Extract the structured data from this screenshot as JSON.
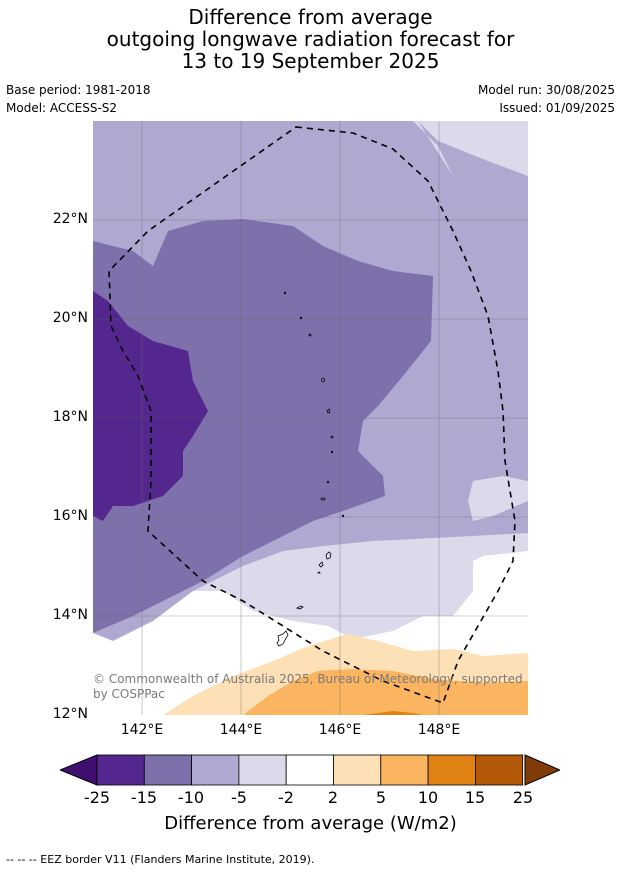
{
  "title": {
    "line1": "Difference from average",
    "line2": "outgoing longwave radiation forecast for",
    "line3": "13 to 19 September 2025"
  },
  "meta": {
    "base_period": "Base period: 1981-2018",
    "model": "Model: ACCESS-S2",
    "model_run": "Model run: 30/08/2025",
    "issued": "Issued: 01/09/2025"
  },
  "map": {
    "lat_labels": [
      "22°N",
      "20°N",
      "18°N",
      "16°N",
      "14°N",
      "12°N"
    ],
    "lon_labels": [
      "142°E",
      "144°E",
      "146°E",
      "148°E"
    ],
    "copyright": "© Commonwealth of Australia 2025, Bureau of Meteorology, supported by COSPPac"
  },
  "colorbar": {
    "ticks": [
      "-25",
      "-15",
      "-10",
      "-5",
      "-2",
      "2",
      "5",
      "10",
      "15",
      "25"
    ],
    "colors": [
      "#3f0f72",
      "#54278f",
      "#7e71ab",
      "#afa9d1",
      "#dadaeb",
      "#ffffff",
      "#fde0b6",
      "#fbb460",
      "#e08214",
      "#b35806",
      "#7f3b08"
    ],
    "label": "Difference from average (W/m2)"
  },
  "legend": {
    "text": "--  --  -- EEZ border V11 (Flanders Marine Institute, 2019)."
  }
}
